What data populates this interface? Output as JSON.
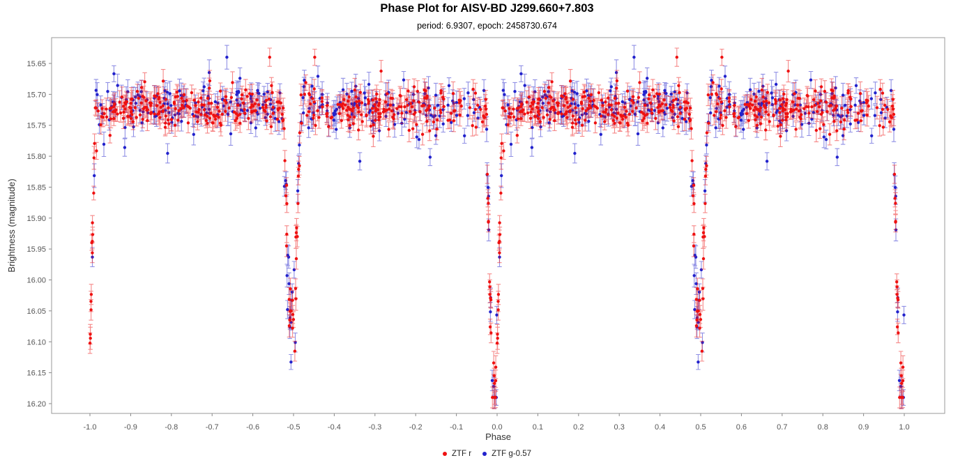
{
  "chart_data": {
    "type": "scatter",
    "title": "Phase Plot for AISV-BD J299.660+7.803",
    "subtitle": "period: 6.9307, epoch: 2458730.674",
    "xlabel": "Phase",
    "ylabel": "Brightness (magnitude)",
    "x_ticks": [
      -1.0,
      -0.9,
      -0.8,
      -0.7,
      -0.6,
      -0.5,
      -0.4,
      -0.3,
      -0.2,
      -0.1,
      0.0,
      0.1,
      0.2,
      0.3,
      0.4,
      0.5,
      0.6,
      0.7,
      0.8,
      0.9,
      1.0
    ],
    "x_tick_labels": [
      "-1.0",
      "-0.9",
      "-0.8",
      "-0.7",
      "-0.6",
      "-0.5",
      "-0.4",
      "-0.3",
      "-0.2",
      "-0.1",
      "0.0",
      "0.1",
      "0.2",
      "0.3",
      "0.4",
      "0.5",
      "0.6",
      "0.7",
      "0.8",
      "0.9",
      "1.0"
    ],
    "y_ticks": [
      15.65,
      15.7,
      15.75,
      15.8,
      15.85,
      15.9,
      15.95,
      16.0,
      16.05,
      16.1,
      16.15,
      16.2
    ],
    "y_tick_labels": [
      "15.65",
      "15.70",
      "15.75",
      "15.80",
      "15.85",
      "15.90",
      "15.95",
      "16.00",
      "16.05",
      "16.10",
      "16.15",
      "16.20"
    ],
    "xlim": [
      -1.0942,
      1.0993
    ],
    "ylim": [
      15.6083,
      16.2158
    ],
    "y_inverted": true,
    "grid": false,
    "frame_color": "#999999",
    "tick_color": "#888888",
    "tick_label_color": "#555555",
    "axis_label_color": "#333333",
    "title_color": "#000000",
    "legend": {
      "position": "bottom-center",
      "entries": [
        {
          "id": "ztf-r",
          "label": "ZTF r",
          "color": "#ee1111"
        },
        {
          "id": "ztf-g",
          "label": "ZTF g-0.57",
          "color": "#2222cc"
        }
      ]
    },
    "model": {
      "description": "Phase-folded eclipsing-binary light curve; each observation is plotted twice, at phase and phase-1. Flat out-of-eclipse band at ~15.72 mag; deep narrow primary eclipses at phase 0/±1 reaching ~16.19 mag; secondary eclipses at ±0.5 reaching ~16.10 mag.",
      "baseline_mag": 15.721,
      "eclipses": [
        {
          "name": "primary",
          "center_phase": 0.993,
          "half_width": 0.02,
          "flat_core": 0.0055,
          "depth_mag": 0.445
        },
        {
          "name": "secondary",
          "center_phase": 0.4965,
          "half_width": 0.022,
          "flat_core": 0.006,
          "depth_mag": 0.335
        }
      ],
      "series": [
        {
          "id": "ztf-g",
          "name": "ZTF g-0.57",
          "color": "#2222cc",
          "n_points": 265,
          "noise_sigma": 0.019,
          "outlier_frac": 0.05,
          "outlier_scale": 2.6,
          "err_base": 0.012,
          "err_spread": 0.009,
          "eclipse_extra": [
            8,
            10
          ]
        },
        {
          "id": "ztf-r",
          "name": "ZTF r",
          "color": "#ee1111",
          "n_points": 430,
          "noise_sigma": 0.0155,
          "outlier_frac": 0.045,
          "outlier_scale": 2.6,
          "err_base": 0.011,
          "err_spread": 0.008,
          "eclipse_extra": [
            20,
            16
          ]
        }
      ],
      "mag_clamp": [
        15.64,
        16.19
      ],
      "seed": 1337
    }
  }
}
